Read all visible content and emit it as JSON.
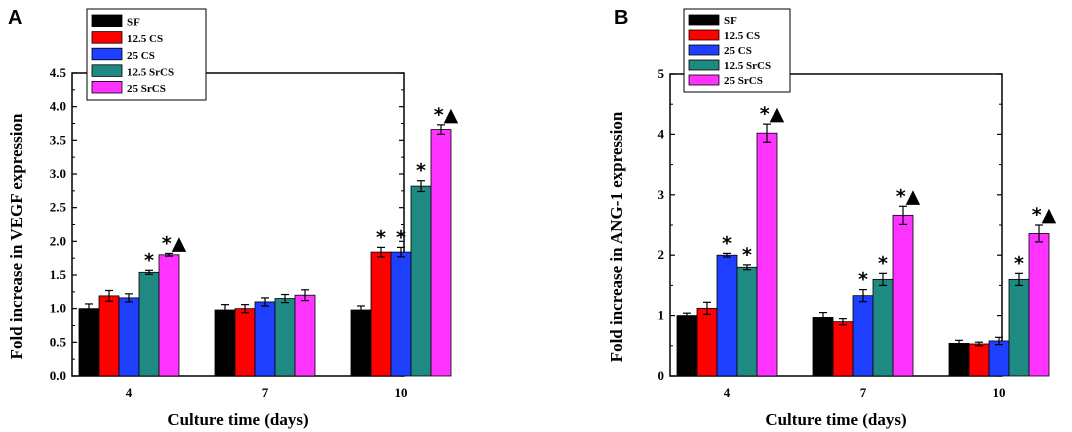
{
  "colors": {
    "SF": "#000000",
    "12.5 CS": "#ff0000",
    "25 CS": "#1f3fff",
    "12.5 SrCS": "#1f8a82",
    "25 SrCS": "#ff33ff"
  },
  "chart_data": [
    {
      "panel": "A",
      "type": "bar",
      "xlabel": "Culture time (days)",
      "ylabel": "Fold increase in VEGF expression",
      "ylim": [
        0,
        4.5
      ],
      "yticks": [
        "0.0",
        "0.5",
        "1.0",
        "1.5",
        "2.0",
        "2.5",
        "3.0",
        "3.5",
        "4.0",
        "4.5"
      ],
      "categories": [
        "4",
        "7",
        "10"
      ],
      "legend": [
        "SF",
        "12.5 CS",
        "25 CS",
        "12.5 SrCS",
        "25 SrCS"
      ],
      "series": [
        {
          "name": "SF",
          "values": [
            1.0,
            0.98,
            0.98
          ],
          "errors": [
            0.07,
            0.08,
            0.06
          ]
        },
        {
          "name": "12.5 CS",
          "values": [
            1.19,
            1.0,
            1.84
          ],
          "errors": [
            0.08,
            0.06,
            0.07
          ]
        },
        {
          "name": "25 CS",
          "values": [
            1.16,
            1.1,
            1.84
          ],
          "errors": [
            0.06,
            0.06,
            0.07
          ]
        },
        {
          "name": "12.5 SrCS",
          "values": [
            1.54,
            1.15,
            2.82
          ],
          "errors": [
            0.03,
            0.06,
            0.08
          ]
        },
        {
          "name": "25 SrCS",
          "values": [
            1.8,
            1.2,
            3.66
          ],
          "errors": [
            0.02,
            0.08,
            0.07
          ]
        }
      ],
      "markers": [
        {
          "category": "4",
          "series": "12.5 SrCS",
          "text": "*"
        },
        {
          "category": "4",
          "series": "25 SrCS",
          "text": "*▲"
        },
        {
          "category": "10",
          "series": "12.5 CS",
          "text": "*"
        },
        {
          "category": "10",
          "series": "25 CS",
          "text": "*"
        },
        {
          "category": "10",
          "series": "12.5 SrCS",
          "text": "*"
        },
        {
          "category": "10",
          "series": "25 SrCS",
          "text": "*▲"
        }
      ]
    },
    {
      "panel": "B",
      "type": "bar",
      "xlabel": "Culture time (days)",
      "ylabel": "Fold increase in ANG-1 expression",
      "ylim": [
        0,
        5
      ],
      "yticks": [
        "0",
        "1",
        "2",
        "3",
        "4",
        "5"
      ],
      "categories": [
        "4",
        "7",
        "10"
      ],
      "legend": [
        "SF",
        "12.5 CS",
        "25 CS",
        "12.5 SrCS",
        "25 SrCS"
      ],
      "series": [
        {
          "name": "SF",
          "values": [
            1.0,
            0.97,
            0.54
          ],
          "errors": [
            0.04,
            0.08,
            0.05
          ]
        },
        {
          "name": "12.5 CS",
          "values": [
            1.12,
            0.9,
            0.53
          ],
          "errors": [
            0.1,
            0.05,
            0.03
          ]
        },
        {
          "name": "25 CS",
          "values": [
            2.0,
            1.33,
            0.58
          ],
          "errors": [
            0.03,
            0.1,
            0.06
          ]
        },
        {
          "name": "12.5 SrCS",
          "values": [
            1.8,
            1.6,
            1.6
          ],
          "errors": [
            0.04,
            0.1,
            0.1
          ]
        },
        {
          "name": "25 SrCS",
          "values": [
            4.02,
            2.66,
            2.36
          ],
          "errors": [
            0.15,
            0.15,
            0.14
          ]
        }
      ],
      "markers": [
        {
          "category": "4",
          "series": "25 CS",
          "text": "*"
        },
        {
          "category": "4",
          "series": "12.5 SrCS",
          "text": "*"
        },
        {
          "category": "4",
          "series": "25 SrCS",
          "text": "*▲"
        },
        {
          "category": "7",
          "series": "25 CS",
          "text": "*"
        },
        {
          "category": "7",
          "series": "12.5 SrCS",
          "text": "*"
        },
        {
          "category": "7",
          "series": "25 SrCS",
          "text": "*▲"
        },
        {
          "category": "10",
          "series": "12.5 SrCS",
          "text": "*"
        },
        {
          "category": "10",
          "series": "25 SrCS",
          "text": "*▲"
        }
      ]
    }
  ]
}
